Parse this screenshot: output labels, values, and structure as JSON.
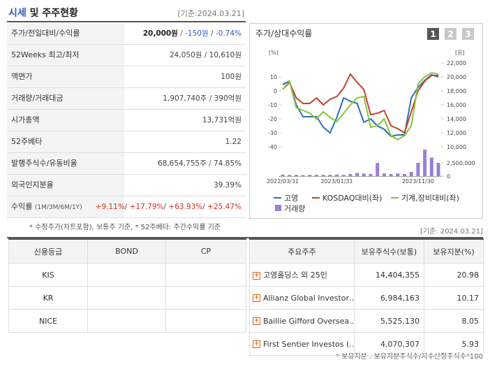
{
  "header": {
    "title_highlight": "시세",
    "title_rest": "및 주주현황",
    "date": "[기준:2024.03.21]"
  },
  "summary": {
    "rows": [
      {
        "label": "주가/전일대비/수익률",
        "values": [
          "20,000원",
          "-150원",
          "-0.74%"
        ],
        "separator": " / "
      },
      {
        "label": "52Weeks 최고/최저",
        "values": [
          "24,050원",
          "10,610원"
        ],
        "separator": " / "
      },
      {
        "label": "액면가",
        "values": [
          "100원"
        ]
      },
      {
        "label": "거래량/거래대금",
        "values": [
          "1,907,740주",
          "390억원"
        ],
        "separator": " / "
      },
      {
        "label": "시가총액",
        "values": [
          "13,731억원"
        ]
      },
      {
        "label": "52주베타",
        "values": [
          "1.22"
        ]
      },
      {
        "label": "발행주식수/유동비율",
        "values": [
          "68,654,755주",
          "74.85%"
        ],
        "separator": " / "
      },
      {
        "label": "외국인지분율",
        "values": [
          "39.39%"
        ]
      },
      {
        "label": "수익률",
        "sublabel": "(1M/3M/6M/1Y)",
        "values": [
          "+9.11%",
          "+17.79%",
          "+63.93%",
          "+25.47%"
        ],
        "separator": "/ "
      }
    ],
    "note": "* 수정주가(차트포함), 보통주 기준, * 52주베타: 주간수익률 기준"
  },
  "chart": {
    "type": "line",
    "title": "주가/상대수익률",
    "buttons": [
      "1",
      "2",
      "3"
    ],
    "y_unit": "[%]",
    "y2_unit": "[원]",
    "categories": [
      "2022/03/31",
      null,
      null,
      null,
      null,
      null,
      null,
      null,
      "2023/01/31",
      null,
      null,
      null,
      null,
      null,
      null,
      null,
      null,
      null,
      null,
      null,
      "2023/11/30",
      null,
      null,
      null
    ],
    "ylim": [
      -40,
      20
    ],
    "yticks": [
      10,
      0,
      -10,
      -20,
      -30,
      -40
    ],
    "y2lim": [
      10000,
      22000
    ],
    "y2ticks": [
      {
        "value": 22000,
        "label": "22,000"
      },
      {
        "value": 20000,
        "label": "20,000"
      },
      {
        "value": 18000,
        "label": "18,000"
      },
      {
        "value": 16000,
        "label": "16,000"
      },
      {
        "value": 14000,
        "label": "14,000"
      },
      {
        "value": 12000,
        "label": "12,000"
      },
      {
        "value": 10000,
        "label": "10,000"
      }
    ],
    "y3lim": [
      0,
      5000000
    ],
    "y3ticks": [
      {
        "value": 2500000,
        "label": "2,500,000"
      },
      0
    ],
    "series": [
      {
        "name": "고영",
        "color": "#2a6ebb",
        "axis": "y2",
        "values": [
          18900,
          19400,
          16000,
          14300,
          14300,
          14300,
          12800,
          12000,
          14200,
          17000,
          16500,
          16200,
          13500,
          14000,
          13000,
          12500,
          11500,
          11700,
          11700,
          17000,
          18500,
          19500,
          20300,
          20000
        ]
      },
      {
        "name": "KOSDAQ대비(좌)",
        "color": "#c8402a",
        "values": [
          1,
          6,
          -5,
          -9,
          -9,
          -5,
          -10,
          -6,
          -4,
          2,
          12,
          6,
          1,
          -17,
          -16,
          -14,
          -25,
          -27,
          -30,
          -15,
          0,
          7,
          11,
          11
        ]
      },
      {
        "name": "기계,장비대비(좌)",
        "color": "#86c43a",
        "values": [
          1,
          7,
          -12,
          -14,
          -16,
          -20,
          -15,
          -19,
          -22,
          -16,
          -10,
          -5,
          -4,
          -26,
          -25,
          -20,
          -32,
          -35,
          -32,
          -25,
          5,
          10,
          13,
          12
        ]
      },
      {
        "name": "거래량",
        "color": "#9b7fd4",
        "axis": "y3",
        "type": "bar",
        "values": [
          300000,
          250000,
          250000,
          200000,
          250000,
          250000,
          250000,
          250000,
          300000,
          250000,
          400000,
          600000,
          500000,
          400000,
          2500000,
          500000,
          400000,
          500000,
          400000,
          800000,
          2500000,
          5000000,
          3500000,
          2500000
        ]
      }
    ]
  },
  "right_date": "[기준: 2024.03.21]",
  "credit": {
    "headers": [
      "신용등급",
      "BOND",
      "CP"
    ],
    "rows": [
      [
        "KIS"
      ],
      [
        "KR"
      ],
      [
        "NICE"
      ]
    ]
  },
  "holders": {
    "headers": [
      "주요주주",
      "보유주식수(보통)",
      "보유지분(%)"
    ],
    "rows": [
      [
        "고영홀딩스 외 25인",
        "14,404,355",
        "20.98"
      ],
      [
        "Allianz Global Investor…",
        "6,984,163",
        "10.17"
      ],
      [
        "Baillie Gifford Oversea…",
        "5,525,130",
        "8.05"
      ],
      [
        "First Sentier Investos (…",
        "4,070,307",
        "5.93"
      ]
    ],
    "note": "* 보유지분 : 보유지분주식수/지수산정주식수*100"
  }
}
